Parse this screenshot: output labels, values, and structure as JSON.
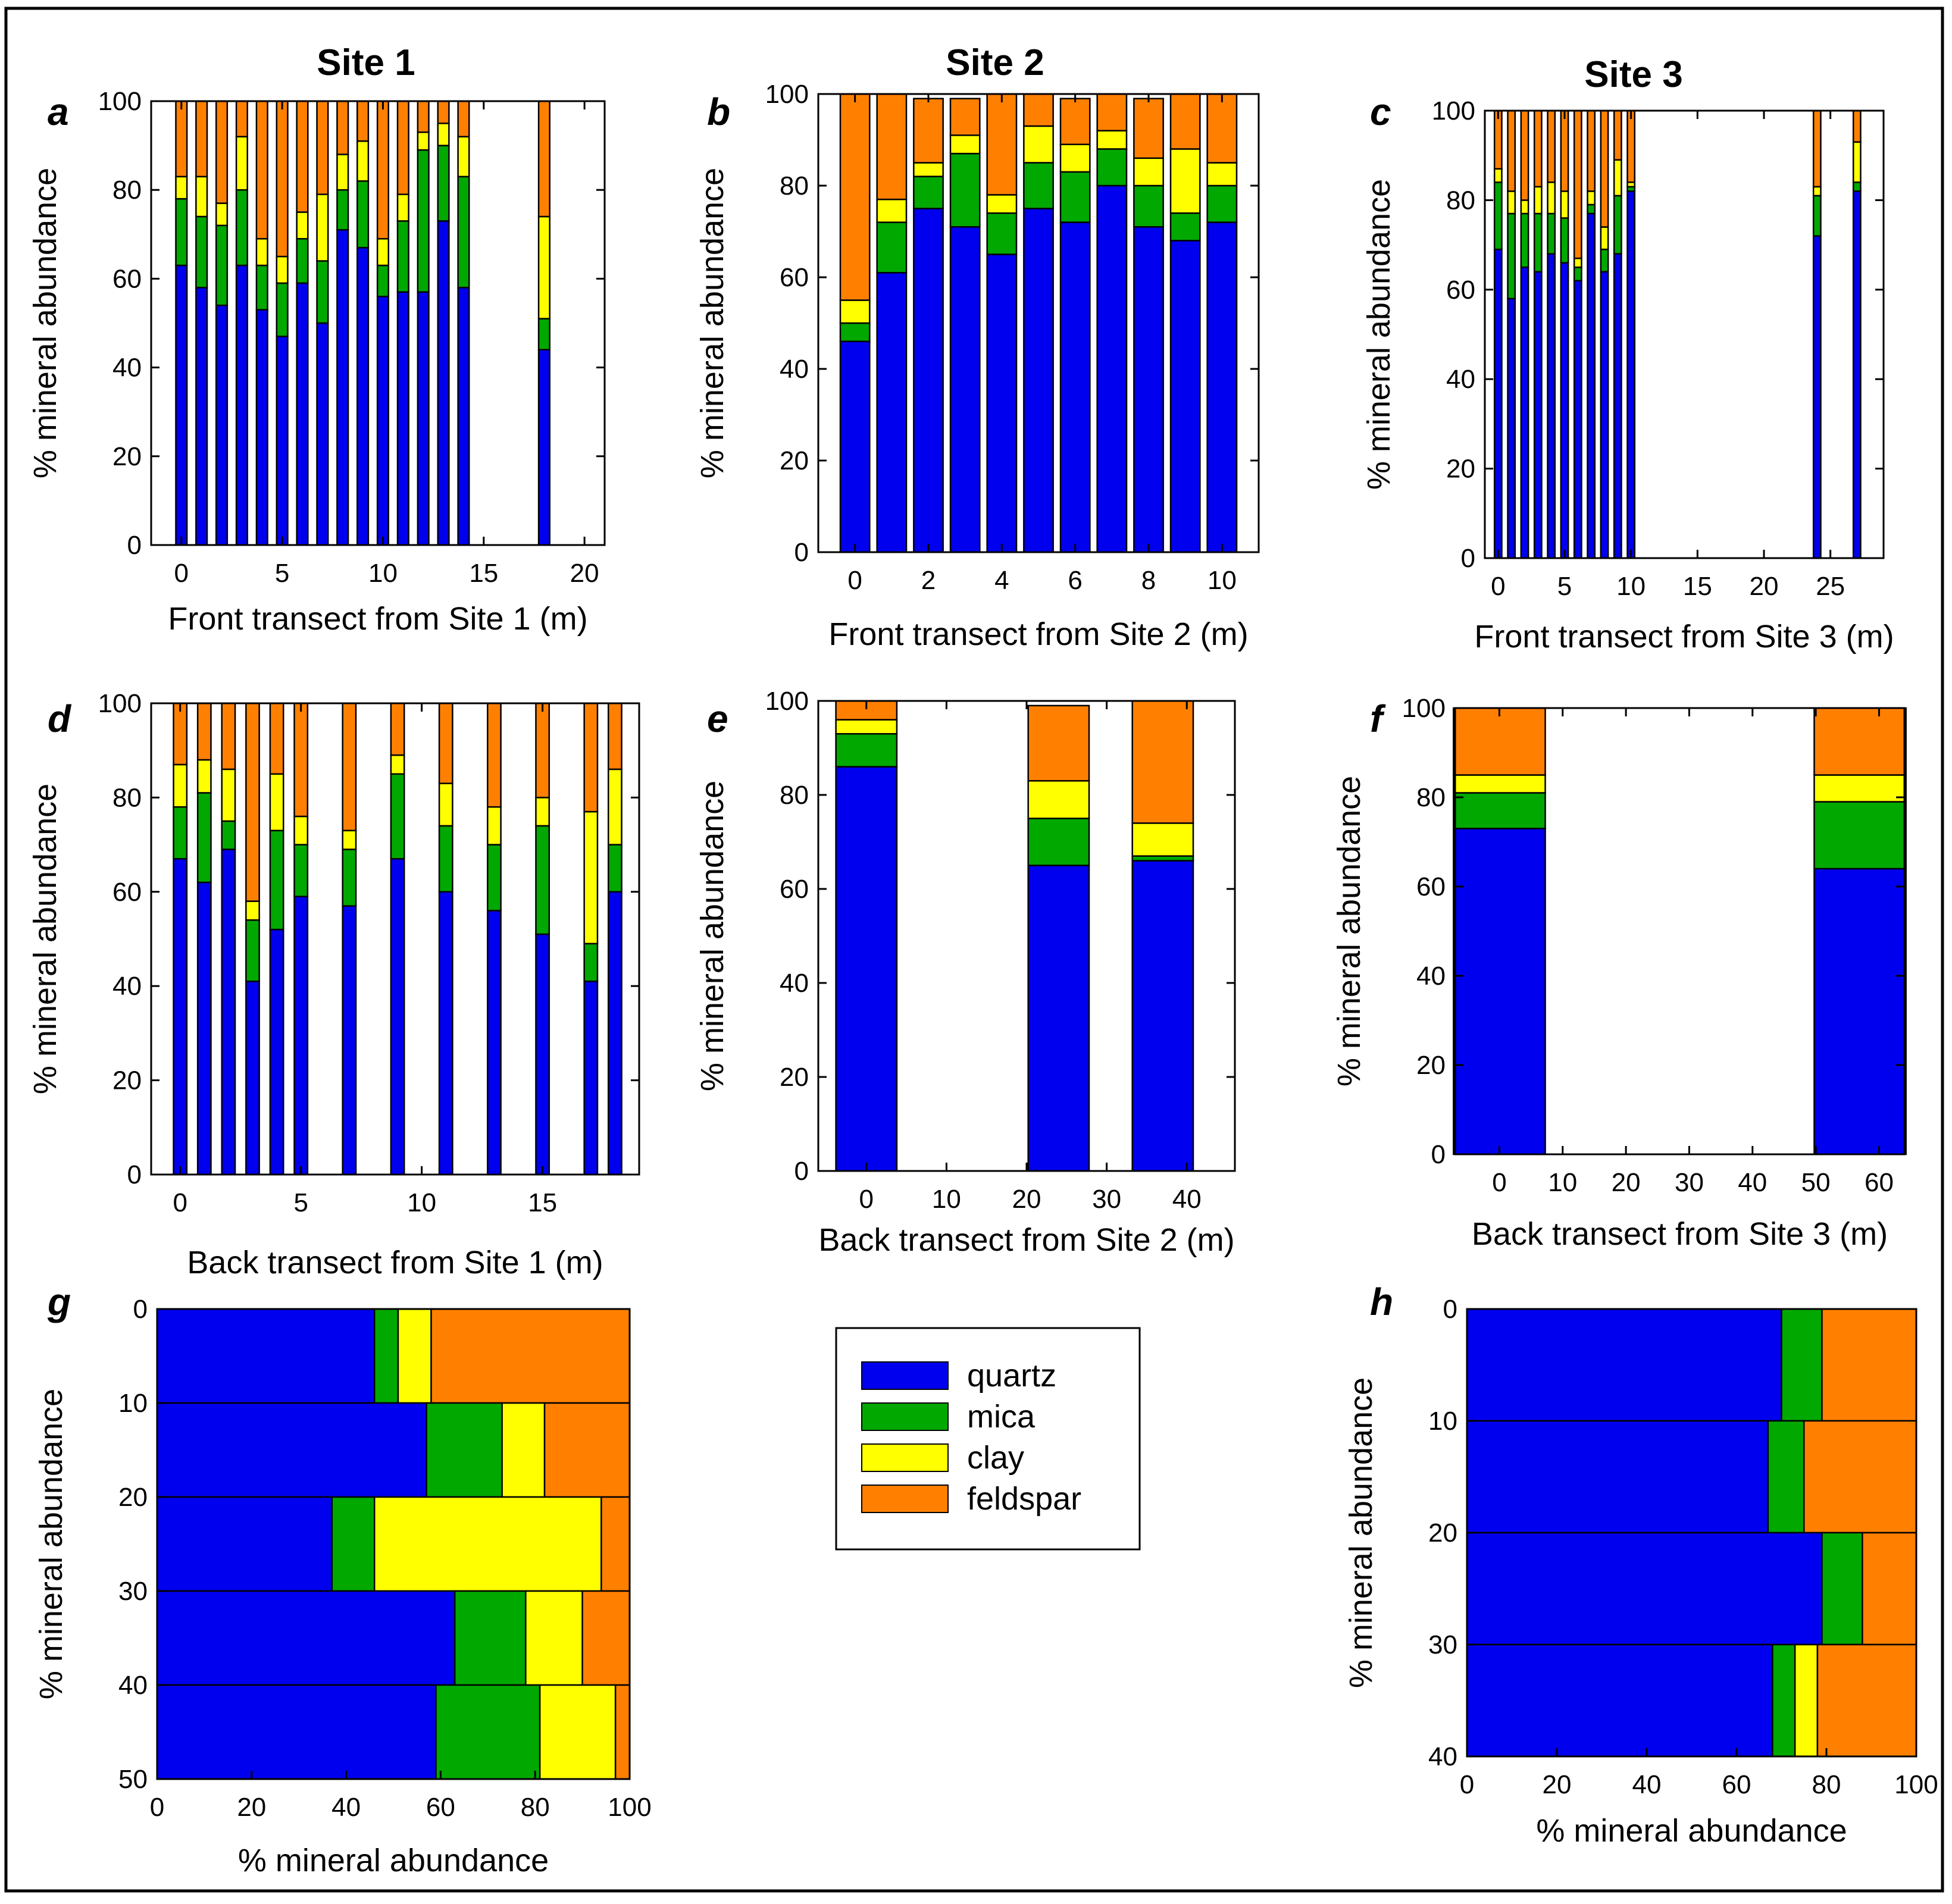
{
  "legend": {
    "items": [
      {
        "label": "quartz",
        "color": "#0000ee"
      },
      {
        "label": "mica",
        "color": "#00a800"
      },
      {
        "label": "clay",
        "color": "#ffff00"
      },
      {
        "label": "feldspar",
        "color": "#ff8000"
      }
    ]
  },
  "site_titles": [
    "Site 1",
    "Site 2",
    "Site 3"
  ],
  "chart_data": [
    {
      "panel": "a",
      "type": "bar",
      "stacked": true,
      "orientation": "vertical",
      "xlabel": "Front transect from Site 1 (m)",
      "ylabel": "% mineral abundance",
      "xlim": [
        -1.5,
        21
      ],
      "ylim": [
        0,
        100
      ],
      "xticks": [
        0,
        5,
        10,
        15,
        20
      ],
      "yticks": [
        0,
        20,
        40,
        60,
        80,
        100
      ],
      "bar_width": 0.55,
      "x": [
        0,
        1,
        2,
        3,
        4,
        5,
        6,
        7,
        8,
        9,
        10,
        11,
        12,
        13,
        14,
        18
      ],
      "series": [
        {
          "name": "quartz",
          "values": [
            63,
            58,
            54,
            63,
            53,
            47,
            59,
            50,
            71,
            67,
            56,
            57,
            57,
            73,
            58,
            44
          ]
        },
        {
          "name": "mica",
          "values": [
            15,
            16,
            18,
            17,
            10,
            12,
            10,
            14,
            9,
            15,
            7,
            16,
            32,
            17,
            25,
            7
          ]
        },
        {
          "name": "clay",
          "values": [
            5,
            9,
            5,
            12,
            6,
            6,
            6,
            15,
            8,
            9,
            6,
            6,
            4,
            5,
            9,
            23
          ]
        },
        {
          "name": "feldspar",
          "values": [
            17,
            17,
            23,
            8,
            31,
            35,
            25,
            21,
            12,
            9,
            31,
            21,
            7,
            5,
            8,
            26
          ]
        }
      ]
    },
    {
      "panel": "b",
      "type": "bar",
      "stacked": true,
      "orientation": "vertical",
      "xlabel": "Front transect from Site 2 (m)",
      "ylabel": "% mineral abundance",
      "xlim": [
        -1,
        11
      ],
      "ylim": [
        0,
        100
      ],
      "xticks": [
        0,
        2,
        4,
        6,
        8,
        10
      ],
      "yticks": [
        0,
        20,
        40,
        60,
        80,
        100
      ],
      "bar_width": 0.8,
      "x": [
        0,
        1,
        2,
        3,
        4,
        5,
        6,
        7,
        8,
        9,
        10
      ],
      "series": [
        {
          "name": "quartz",
          "values": [
            46,
            61,
            75,
            71,
            65,
            75,
            72,
            80,
            71,
            68,
            72
          ]
        },
        {
          "name": "mica",
          "values": [
            4,
            11,
            7,
            16,
            9,
            10,
            11,
            8,
            9,
            6,
            8
          ]
        },
        {
          "name": "clay",
          "values": [
            5,
            5,
            3,
            4,
            4,
            8,
            6,
            4,
            6,
            14,
            5
          ]
        },
        {
          "name": "feldspar",
          "values": [
            45,
            23,
            14,
            8,
            22,
            7,
            10,
            8,
            13,
            12,
            15
          ]
        }
      ]
    },
    {
      "panel": "c",
      "type": "bar",
      "stacked": true,
      "orientation": "vertical",
      "xlabel": "Front transect from Site 3 (m)",
      "ylabel": "% mineral abundance",
      "xlim": [
        -1,
        29
      ],
      "ylim": [
        0,
        100
      ],
      "xticks": [
        0,
        5,
        10,
        15,
        20,
        25
      ],
      "yticks": [
        0,
        20,
        40,
        60,
        80,
        100
      ],
      "bar_width": 0.55,
      "x": [
        0,
        1,
        2,
        3,
        4,
        5,
        6,
        7,
        8,
        9,
        10,
        24,
        27
      ],
      "series": [
        {
          "name": "quartz",
          "values": [
            69,
            58,
            65,
            64,
            68,
            66,
            62,
            77,
            64,
            68,
            82,
            72,
            82
          ]
        },
        {
          "name": "mica",
          "values": [
            15,
            19,
            12,
            13,
            9,
            10,
            3,
            2,
            5,
            13,
            1,
            9,
            2
          ]
        },
        {
          "name": "clay",
          "values": [
            3,
            5,
            3,
            6,
            7,
            6,
            2,
            3,
            5,
            8,
            1,
            2,
            9
          ]
        },
        {
          "name": "feldspar",
          "values": [
            13,
            18,
            20,
            17,
            16,
            18,
            33,
            18,
            26,
            11,
            16,
            17,
            7
          ]
        }
      ]
    },
    {
      "panel": "d",
      "type": "bar",
      "stacked": true,
      "orientation": "vertical",
      "xlabel": "Back transect from Site 1 (m)",
      "ylabel": "% mineral abundance",
      "xlim": [
        -1.2,
        19
      ],
      "ylim": [
        0,
        100
      ],
      "xticks": [
        0,
        5,
        10,
        15
      ],
      "yticks": [
        0,
        20,
        40,
        60,
        80,
        100
      ],
      "bar_width": 0.55,
      "x": [
        0,
        1,
        2,
        3,
        4,
        5,
        7,
        9,
        11,
        13,
        15,
        17,
        18
      ],
      "series": [
        {
          "name": "quartz",
          "values": [
            67,
            62,
            69,
            41,
            52,
            59,
            57,
            67,
            60,
            56,
            51,
            41,
            60
          ]
        },
        {
          "name": "mica",
          "values": [
            11,
            19,
            6,
            13,
            21,
            11,
            12,
            18,
            14,
            14,
            23,
            8,
            10
          ]
        },
        {
          "name": "clay",
          "values": [
            9,
            7,
            11,
            4,
            12,
            6,
            4,
            4,
            9,
            8,
            6,
            28,
            16
          ]
        },
        {
          "name": "feldspar",
          "values": [
            13,
            12,
            14,
            42,
            15,
            24,
            27,
            11,
            17,
            22,
            20,
            23,
            14
          ]
        }
      ]
    },
    {
      "panel": "e",
      "type": "bar",
      "stacked": true,
      "orientation": "vertical",
      "xlabel": "Back transect from Site 2 (m)",
      "ylabel": "% mineral abundance",
      "xlim": [
        -6,
        46
      ],
      "ylim": [
        0,
        100
      ],
      "xticks": [
        0,
        10,
        20,
        30,
        40
      ],
      "yticks": [
        0,
        20,
        40,
        60,
        80,
        100
      ],
      "bar_width": 7.6,
      "x": [
        0,
        24,
        37
      ],
      "series": [
        {
          "name": "quartz",
          "values": [
            86,
            65,
            66
          ]
        },
        {
          "name": "mica",
          "values": [
            7,
            10,
            1
          ]
        },
        {
          "name": "clay",
          "values": [
            3,
            8,
            7
          ]
        },
        {
          "name": "feldspar",
          "values": [
            4,
            16,
            26
          ]
        }
      ]
    },
    {
      "panel": "f",
      "type": "bar",
      "stacked": true,
      "orientation": "vertical",
      "xlabel": "Back transect from Site 3 (m)",
      "ylabel": "% mineral abundance",
      "xlim": [
        -7,
        64
      ],
      "ylim": [
        0,
        100
      ],
      "xticks": [
        0,
        10,
        20,
        30,
        40,
        50,
        60
      ],
      "yticks": [
        0,
        20,
        40,
        60,
        80,
        100
      ],
      "bar_width": 14.5,
      "x": [
        0,
        57
      ],
      "series": [
        {
          "name": "quartz",
          "values": [
            73,
            64
          ]
        },
        {
          "name": "mica",
          "values": [
            8,
            15
          ]
        },
        {
          "name": "clay",
          "values": [
            4,
            6
          ]
        },
        {
          "name": "feldspar",
          "values": [
            15,
            15
          ]
        }
      ]
    },
    {
      "panel": "g",
      "type": "bar",
      "stacked": true,
      "orientation": "horizontal",
      "xlabel": "% mineral abundance",
      "ylabel": "% mineral abundance",
      "xlim": [
        0,
        100
      ],
      "ylim": [
        0,
        50
      ],
      "xticks": [
        0,
        20,
        40,
        60,
        80,
        100
      ],
      "yticks": [
        0,
        10,
        20,
        30,
        40,
        50
      ],
      "depth_bins": [
        [
          0,
          10
        ],
        [
          10,
          20
        ],
        [
          20,
          30
        ],
        [
          30,
          40
        ],
        [
          40,
          50
        ]
      ],
      "series": [
        {
          "name": "quartz",
          "values": [
            46,
            57,
            37,
            63,
            59
          ]
        },
        {
          "name": "mica",
          "values": [
            5,
            16,
            9,
            15,
            22
          ]
        },
        {
          "name": "clay",
          "values": [
            7,
            9,
            48,
            12,
            16
          ]
        },
        {
          "name": "feldspar",
          "values": [
            42,
            18,
            6,
            10,
            3
          ]
        }
      ]
    },
    {
      "panel": "h",
      "type": "bar",
      "stacked": true,
      "orientation": "horizontal",
      "xlabel": "% mineral abundance",
      "ylabel": "% mineral abundance",
      "xlim": [
        0,
        100
      ],
      "ylim": [
        0,
        40
      ],
      "xticks": [
        0,
        20,
        40,
        60,
        80,
        100
      ],
      "yticks": [
        0,
        10,
        20,
        30,
        40
      ],
      "depth_bins": [
        [
          0,
          10
        ],
        [
          10,
          20
        ],
        [
          20,
          30
        ],
        [
          30,
          40
        ]
      ],
      "series": [
        {
          "name": "quartz",
          "values": [
            70,
            67,
            79,
            68
          ]
        },
        {
          "name": "mica",
          "values": [
            9,
            8,
            9,
            5
          ]
        },
        {
          "name": "clay",
          "values": [
            0,
            0,
            0,
            5
          ]
        },
        {
          "name": "feldspar",
          "values": [
            21,
            25,
            12,
            22
          ]
        }
      ]
    }
  ]
}
